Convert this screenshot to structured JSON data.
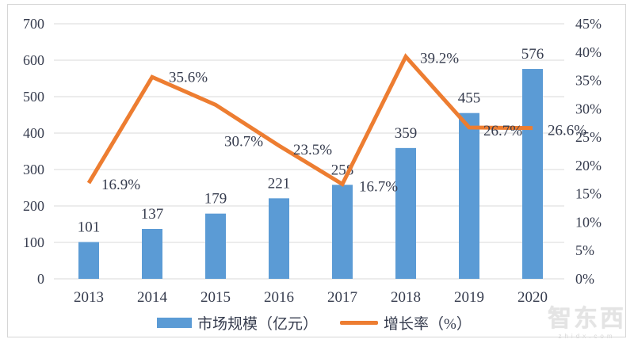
{
  "theme": {
    "bar_color": "#5B9BD5",
    "line_color": "#ED7D31",
    "grid_color": "#D9D9D9",
    "text_color": "#363C4E"
  },
  "legend": {
    "items": [
      {
        "label": "市场规模（亿元）",
        "type": "bar",
        "color": "#5B9BD5"
      },
      {
        "label": "增长率（%）",
        "type": "line",
        "color": "#ED7D31"
      }
    ]
  },
  "watermark": {
    "logo_text": "智东西",
    "site_text": "zhidx.com"
  },
  "chart_data": {
    "type": "bar",
    "subtype": "combo-bar-line",
    "categories": [
      "2013",
      "2014",
      "2015",
      "2016",
      "2017",
      "2018",
      "2019",
      "2020"
    ],
    "series": [
      {
        "name": "市场规模（亿元）",
        "type": "bar",
        "axis": "left",
        "color": "#5B9BD5",
        "values": [
          101,
          137,
          179,
          221,
          258,
          359,
          455,
          576
        ],
        "labels": [
          "101",
          "137",
          "179",
          "221",
          "258",
          "359",
          "455",
          "576"
        ]
      },
      {
        "name": "增长率（%）",
        "type": "line",
        "axis": "right",
        "color": "#ED7D31",
        "values": [
          16.9,
          35.6,
          30.7,
          23.5,
          16.7,
          39.2,
          26.7,
          26.6
        ],
        "labels": [
          "16.9%",
          "35.6%",
          "30.7%",
          "23.5%",
          "16.7%",
          "39.2%",
          "26.7%",
          "26.6%"
        ]
      }
    ],
    "left_axis": {
      "min": 0,
      "max": 700,
      "step": 100,
      "tick_labels": [
        "0",
        "100",
        "200",
        "300",
        "400",
        "500",
        "600",
        "700"
      ]
    },
    "right_axis": {
      "min": 0,
      "max": 45,
      "step": 5,
      "tick_labels": [
        "0%",
        "5%",
        "10%",
        "15%",
        "20%",
        "25%",
        "30%",
        "35%",
        "40%",
        "45%"
      ]
    },
    "grid": true,
    "legend_position": "bottom",
    "title": ""
  }
}
